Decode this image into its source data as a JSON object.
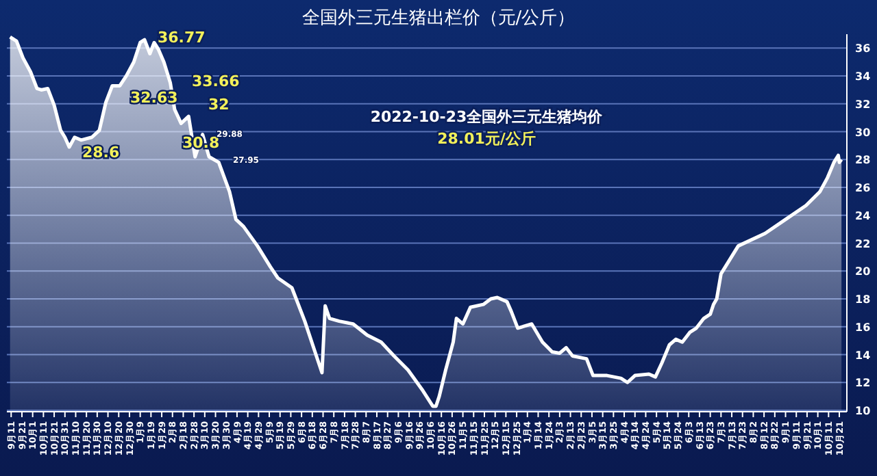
{
  "chart_data": {
    "type": "area",
    "title": "全国外三元生猪出栏价（元/公斤）",
    "annotations": [
      "36.77",
      "32.63",
      "33.66",
      "32",
      "30.8",
      "28.6",
      "29.88",
      "27.95",
      "2022-10-23全国外三元生猪均价",
      "28.01元/公斤"
    ],
    "x": [
      "2020-09-10",
      "2020-09-16",
      "2020-09-22",
      "2020-09-29",
      "2020-10-05",
      "2020-10-09",
      "2020-10-15",
      "2020-10-21",
      "2020-10-27",
      "2020-10-31",
      "2020-11-04",
      "2020-11-09",
      "2020-11-15",
      "2020-11-25",
      "2020-12-02",
      "2020-12-08",
      "2020-12-14",
      "2020-12-21",
      "2020-12-27",
      "2021-01-03",
      "2021-01-09",
      "2021-01-13",
      "2021-01-18",
      "2021-01-22",
      "2021-01-26",
      "2021-01-31",
      "2021-02-06",
      "2021-02-10",
      "2021-02-16",
      "2021-02-23",
      "2021-03-01",
      "2021-03-08",
      "2021-03-14",
      "2021-03-23",
      "2021-04-02",
      "2021-04-08",
      "2021-04-15",
      "2021-04-28",
      "2021-05-10",
      "2021-05-17",
      "2021-05-30",
      "2021-06-11",
      "2021-06-27",
      "2021-06-30",
      "2021-07-04",
      "2021-07-13",
      "2021-07-26",
      "2021-08-08",
      "2021-08-21",
      "2021-09-02",
      "2021-09-15",
      "2021-09-28",
      "2021-10-08",
      "2021-10-11",
      "2021-10-14",
      "2021-10-20",
      "2021-10-27",
      "2021-10-30",
      "2021-11-05",
      "2021-11-12",
      "2021-11-24",
      "2021-12-01",
      "2021-12-07",
      "2021-12-16",
      "2021-12-20",
      "2021-12-26",
      "2022-01-08",
      "2022-01-18",
      "2022-01-27",
      "2022-02-03",
      "2022-02-09",
      "2022-02-15",
      "2022-02-28",
      "2022-03-06",
      "2022-03-19",
      "2022-04-01",
      "2022-04-07",
      "2022-04-14",
      "2022-04-27",
      "2022-05-03",
      "2022-05-09",
      "2022-05-16",
      "2022-05-22",
      "2022-05-28",
      "2022-06-04",
      "2022-06-10",
      "2022-06-17",
      "2022-06-23",
      "2022-06-26",
      "2022-06-29",
      "2022-07-03",
      "2022-07-19",
      "2022-08-13",
      "2022-09-01",
      "2022-09-20",
      "2022-10-03",
      "2022-10-10",
      "2022-10-16",
      "2022-10-20",
      "2022-10-21",
      "2022-10-23"
    ],
    "series": [
      {
        "color": "#ffffff",
        "values": [
          36.8,
          36.5,
          35.3,
          34.3,
          33.1,
          33.0,
          33.1,
          31.9,
          30.1,
          29.6,
          28.9,
          29.6,
          29.4,
          29.6,
          30.1,
          32.1,
          33.3,
          33.3,
          34.0,
          35.0,
          36.4,
          36.6,
          35.6,
          36.4,
          35.9,
          35.0,
          33.5,
          31.6,
          30.6,
          31.1,
          28.2,
          29.8,
          28.2,
          27.8,
          25.7,
          23.7,
          23.2,
          21.8,
          20.3,
          19.5,
          18.8,
          16.4,
          12.7,
          17.5,
          16.6,
          16.4,
          16.2,
          15.4,
          14.9,
          13.9,
          12.9,
          11.5,
          10.3,
          10.3,
          11.0,
          12.9,
          14.9,
          16.6,
          16.2,
          17.4,
          17.6,
          18.0,
          18.1,
          17.8,
          17.1,
          15.9,
          16.2,
          14.9,
          14.2,
          14.1,
          14.5,
          13.9,
          13.7,
          12.5,
          12.5,
          12.3,
          12.0,
          12.5,
          12.6,
          12.4,
          13.4,
          14.7,
          15.1,
          14.9,
          15.6,
          15.9,
          16.6,
          16.9,
          17.6,
          18.0,
          19.8,
          21.8,
          22.7,
          23.7,
          24.7,
          25.7,
          26.7,
          27.8,
          28.3,
          27.8,
          28.0
        ]
      }
    ],
    "xlim": [
      "2020-09-07",
      "2022-10-28"
    ],
    "ylim": [
      10,
      37
    ],
    "yticks": [
      10,
      12,
      14,
      16,
      18,
      20,
      22,
      24,
      26,
      28,
      30,
      32,
      34,
      36
    ],
    "xticks": [
      {
        "value": "2020-09-11",
        "label": "9月11"
      },
      {
        "value": "2020-09-21",
        "label": "9月21"
      },
      {
        "value": "2020-10-01",
        "label": "10月1"
      },
      {
        "value": "2020-10-11",
        "label": "10月11"
      },
      {
        "value": "2020-10-21",
        "label": "10月21"
      },
      {
        "value": "2020-10-31",
        "label": "10月31"
      },
      {
        "value": "2020-11-10",
        "label": "11月10"
      },
      {
        "value": "2020-11-20",
        "label": "11月20"
      },
      {
        "value": "2020-11-30",
        "label": "11月30"
      },
      {
        "value": "2020-12-10",
        "label": "12月10"
      },
      {
        "value": "2020-12-20",
        "label": "12月20"
      },
      {
        "value": "2020-12-30",
        "label": "12月30"
      },
      {
        "value": "2021-01-09",
        "label": "1月9"
      },
      {
        "value": "2021-01-19",
        "label": "1月19"
      },
      {
        "value": "2021-01-29",
        "label": "1月29"
      },
      {
        "value": "2021-02-08",
        "label": "2月8"
      },
      {
        "value": "2021-02-18",
        "label": "2月18"
      },
      {
        "value": "2021-02-28",
        "label": "2月28"
      },
      {
        "value": "2021-03-10",
        "label": "3月10"
      },
      {
        "value": "2021-03-20",
        "label": "3月20"
      },
      {
        "value": "2021-03-30",
        "label": "3月30"
      },
      {
        "value": "2021-04-09",
        "label": "4月9"
      },
      {
        "value": "2021-04-19",
        "label": "4月19"
      },
      {
        "value": "2021-04-29",
        "label": "4月29"
      },
      {
        "value": "2021-05-09",
        "label": "5月9"
      },
      {
        "value": "2021-05-19",
        "label": "5月19"
      },
      {
        "value": "2021-05-29",
        "label": "5月29"
      },
      {
        "value": "2021-06-08",
        "label": "6月8"
      },
      {
        "value": "2021-06-18",
        "label": "6月18"
      },
      {
        "value": "2021-06-28",
        "label": "6月28"
      },
      {
        "value": "2021-07-08",
        "label": "7月8"
      },
      {
        "value": "2021-07-18",
        "label": "7月18"
      },
      {
        "value": "2021-07-28",
        "label": "7月28"
      },
      {
        "value": "2021-08-07",
        "label": "8月7"
      },
      {
        "value": "2021-08-17",
        "label": "8月17"
      },
      {
        "value": "2021-08-27",
        "label": "8月27"
      },
      {
        "value": "2021-09-06",
        "label": "9月6"
      },
      {
        "value": "2021-09-16",
        "label": "9月16"
      },
      {
        "value": "2021-09-26",
        "label": "9月26"
      },
      {
        "value": "2021-10-06",
        "label": "10月6"
      },
      {
        "value": "2021-10-16",
        "label": "10月16"
      },
      {
        "value": "2021-10-26",
        "label": "10月26"
      },
      {
        "value": "2021-11-05",
        "label": "11月5"
      },
      {
        "value": "2021-11-15",
        "label": "11月15"
      },
      {
        "value": "2021-11-25",
        "label": "11月25"
      },
      {
        "value": "2021-12-05",
        "label": "12月5"
      },
      {
        "value": "2021-12-15",
        "label": "12月15"
      },
      {
        "value": "2021-12-25",
        "label": "12月25"
      },
      {
        "value": "2022-01-04",
        "label": "1月4"
      },
      {
        "value": "2022-01-14",
        "label": "1月14"
      },
      {
        "value": "2022-01-24",
        "label": "1月24"
      },
      {
        "value": "2022-02-03",
        "label": "2月3"
      },
      {
        "value": "2022-02-13",
        "label": "2月13"
      },
      {
        "value": "2022-02-23",
        "label": "2月23"
      },
      {
        "value": "2022-03-05",
        "label": "3月5"
      },
      {
        "value": "2022-03-15",
        "label": "3月15"
      },
      {
        "value": "2022-03-25",
        "label": "3月25"
      },
      {
        "value": "2022-04-04",
        "label": "4月4"
      },
      {
        "value": "2022-04-14",
        "label": "4月14"
      },
      {
        "value": "2022-04-24",
        "label": "4月24"
      },
      {
        "value": "2022-05-04",
        "label": "5月4"
      },
      {
        "value": "2022-05-14",
        "label": "5月14"
      },
      {
        "value": "2022-05-24",
        "label": "5月24"
      },
      {
        "value": "2022-06-03",
        "label": "6月3"
      },
      {
        "value": "2022-06-13",
        "label": "6月13"
      },
      {
        "value": "2022-06-23",
        "label": "6月23"
      },
      {
        "value": "2022-07-03",
        "label": "7月3"
      },
      {
        "value": "2022-07-13",
        "label": "7月13"
      },
      {
        "value": "2022-07-23",
        "label": "7月23"
      },
      {
        "value": "2022-08-02",
        "label": "8月2"
      },
      {
        "value": "2022-08-12",
        "label": "8月12"
      },
      {
        "value": "2022-08-22",
        "label": "8月22"
      },
      {
        "value": "2022-09-01",
        "label": "9月1"
      },
      {
        "value": "2022-09-11",
        "label": "9月11"
      },
      {
        "value": "2022-09-21",
        "label": "9月21"
      },
      {
        "value": "2022-10-01",
        "label": "10月1"
      },
      {
        "value": "2022-10-11",
        "label": "10月11"
      },
      {
        "value": "2022-10-21",
        "label": "10月21"
      }
    ],
    "grid": "y"
  }
}
